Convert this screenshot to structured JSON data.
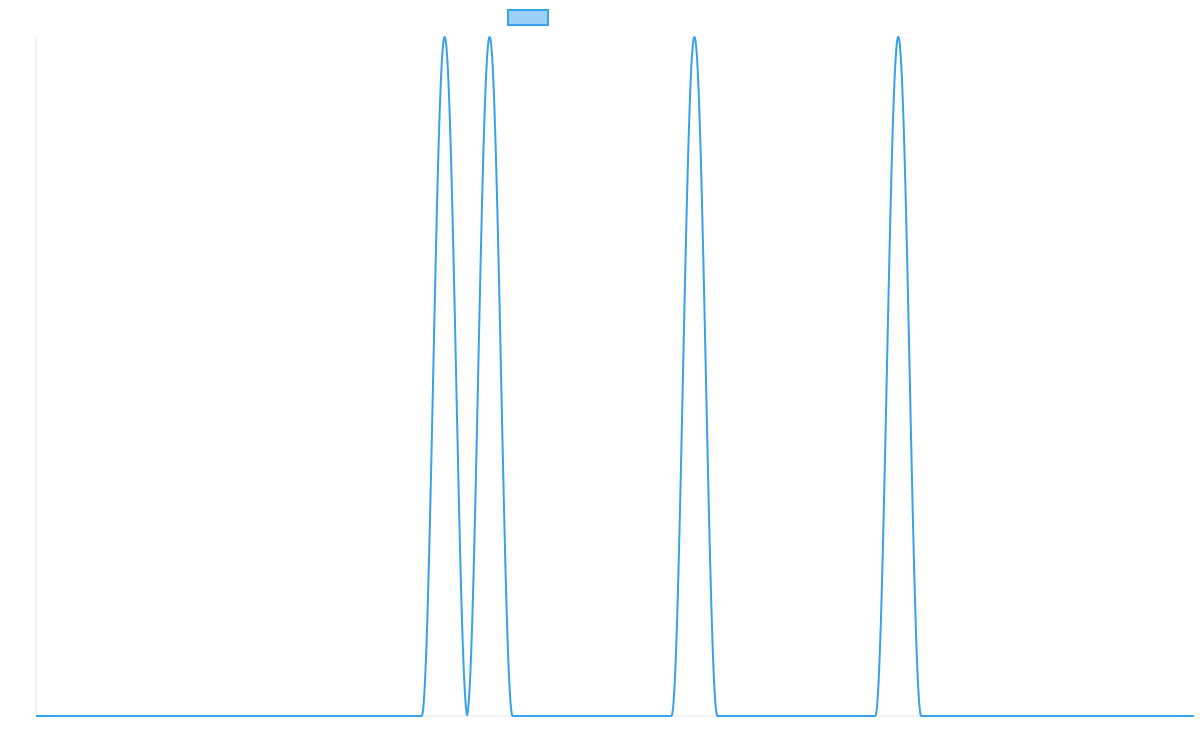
{
  "chart_data": {
    "type": "line",
    "title": "",
    "xlabel": "",
    "ylabel": "",
    "grid": false,
    "legend_position": "top-center",
    "series": [
      {
        "label": "",
        "color": "#36a2eb",
        "fill_color": "#9ad0f5",
        "peaks": [
          {
            "center": 444,
            "half_width": 23,
            "height": 1
          },
          {
            "center": 489,
            "half_width": 23,
            "height": 1
          },
          {
            "center": 694,
            "half_width": 23,
            "height": 1
          },
          {
            "center": 898,
            "half_width": 23,
            "height": 1
          }
        ]
      }
    ],
    "xlim": [
      35,
      1194
    ],
    "ylim": [
      0,
      1
    ]
  }
}
